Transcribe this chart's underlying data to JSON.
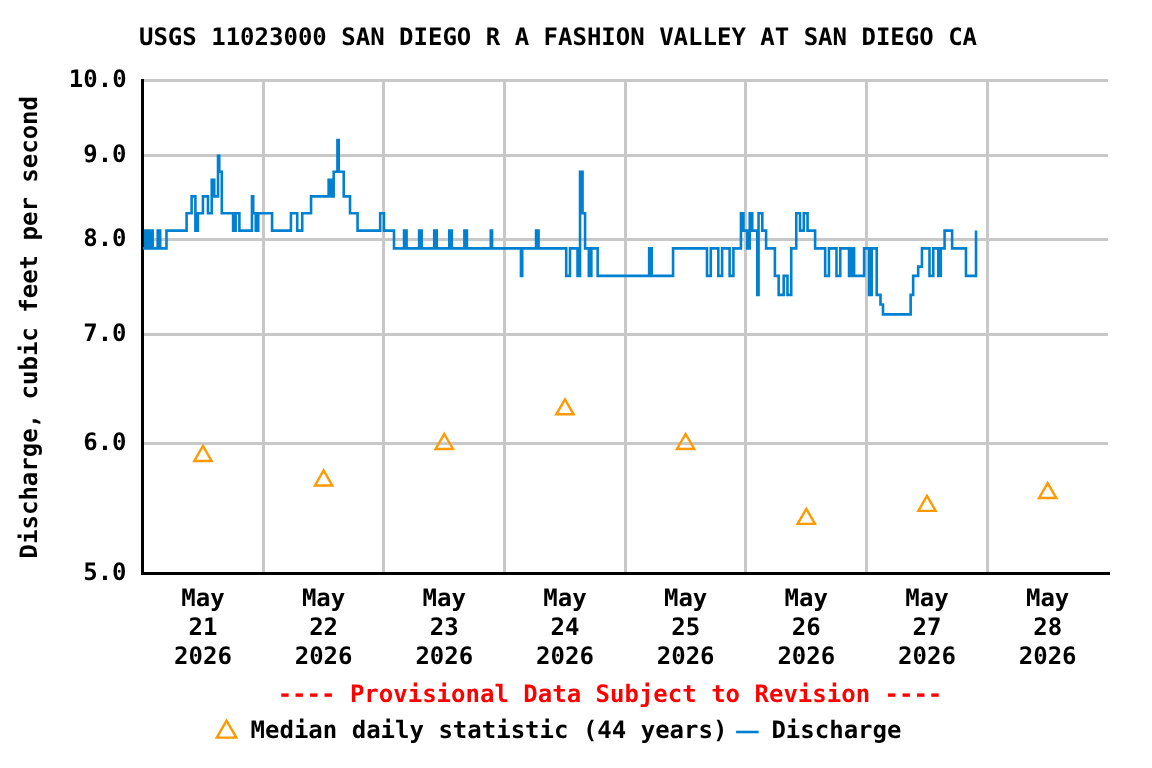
{
  "chart_data": {
    "type": "step",
    "title": "USGS 11023000 SAN DIEGO R A FASHION VALLEY AT SAN DIEGO CA",
    "ylabel": "Discharge, cubic feet per second",
    "log": true,
    "grid": true,
    "legend": "bottom",
    "annotations": [
      "---- Provisional Data Subject to Revision ----"
    ],
    "xlim": [
      "2026-05-21T00:00",
      "2026-05-29T00:00"
    ],
    "xticks": [
      {
        "value": "2026-05-21T12:00",
        "label": "May 21 2026"
      },
      {
        "value": "2026-05-22T00:00",
        "label": null
      },
      {
        "value": "2026-05-22T12:00",
        "label": "May 22 2026"
      },
      {
        "value": "2026-05-23T00:00",
        "label": null
      },
      {
        "value": "2026-05-23T12:00",
        "label": "May 23 2026"
      },
      {
        "value": "2026-05-24T00:00",
        "label": null
      },
      {
        "value": "2026-05-24T12:00",
        "label": "May 24 2026"
      },
      {
        "value": "2026-05-25T00:00",
        "label": null
      },
      {
        "value": "2026-05-25T12:00",
        "label": "May 25 2026"
      },
      {
        "value": "2026-05-26T00:00",
        "label": null
      },
      {
        "value": "2026-05-26T12:00",
        "label": "May 26 2026"
      },
      {
        "value": "2026-05-27T00:00",
        "label": null
      },
      {
        "value": "2026-05-27T12:00",
        "label": "May 27 2026"
      },
      {
        "value": "2026-05-28T00:00",
        "label": null
      },
      {
        "value": "2026-05-28T12:00",
        "label": "May 28 2026"
      }
    ],
    "ylim": [
      5,
      10
    ],
    "yticks": [
      {
        "value": 5,
        "label": "5.0"
      },
      {
        "value": 6,
        "label": "6.0"
      },
      {
        "value": 7,
        "label": "7.0"
      },
      {
        "value": 8,
        "label": "8.0"
      },
      {
        "value": 9,
        "label": "9.0"
      },
      {
        "value": 10,
        "label": "10.0"
      }
    ],
    "series": [
      {
        "name": "Median daily statistic (44 years)",
        "type": "scatter",
        "marker": "triangle",
        "color": "#ff9900",
        "x": [
          "2026-05-21T12:00",
          "2026-05-22T12:00",
          "2026-05-23T12:00",
          "2026-05-24T12:00",
          "2026-05-25T12:00",
          "2026-05-26T12:00",
          "2026-05-27T12:00",
          "2026-05-28T12:00"
        ],
        "values": [
          5.9,
          5.7,
          6.0,
          6.3,
          6.0,
          5.4,
          5.5,
          5.6
        ]
      },
      {
        "name": "Discharge",
        "marker": "none",
        "color": "#0080d0",
        "x": [
          "2026-05-21T00:00",
          "2026-05-21T00:30",
          "2026-05-21T01:00",
          "2026-05-21T01:30",
          "2026-05-21T02:00",
          "2026-05-21T03:00",
          "2026-05-21T03:30",
          "2026-05-21T04:45",
          "2026-05-21T08:45",
          "2026-05-21T09:45",
          "2026-05-21T10:30",
          "2026-05-21T11:00",
          "2026-05-21T12:00",
          "2026-05-21T13:00",
          "2026-05-21T13:45",
          "2026-05-21T14:15",
          "2026-05-21T15:00",
          "2026-05-21T15:15",
          "2026-05-21T15:45",
          "2026-05-21T18:00",
          "2026-05-21T18:30",
          "2026-05-21T19:15",
          "2026-05-21T21:45",
          "2026-05-21T22:00",
          "2026-05-21T22:30",
          "2026-05-21T23:00",
          "2026-05-22T01:45",
          "2026-05-22T05:30",
          "2026-05-22T06:45",
          "2026-05-22T07:45",
          "2026-05-22T09:30",
          "2026-05-22T13:00",
          "2026-05-22T13:30",
          "2026-05-22T14:00",
          "2026-05-22T14:45",
          "2026-05-22T15:00",
          "2026-05-22T16:00",
          "2026-05-22T17:15",
          "2026-05-22T18:45",
          "2026-05-22T23:15",
          "2026-05-23T00:00",
          "2026-05-23T02:00",
          "2026-05-23T04:00",
          "2026-05-23T04:30",
          "2026-05-23T07:00",
          "2026-05-23T07:30",
          "2026-05-23T10:00",
          "2026-05-23T10:30",
          "2026-05-23T13:00",
          "2026-05-23T13:30",
          "2026-05-23T16:00",
          "2026-05-23T16:30",
          "2026-05-23T21:15",
          "2026-05-23T21:30",
          "2026-05-24T03:15",
          "2026-05-24T03:30",
          "2026-05-24T06:15",
          "2026-05-24T06:45",
          "2026-05-24T12:15",
          "2026-05-24T13:00",
          "2026-05-24T14:30",
          "2026-05-24T15:00",
          "2026-05-24T15:30",
          "2026-05-24T16:00",
          "2026-05-24T16:45",
          "2026-05-24T17:15",
          "2026-05-24T18:30",
          "2026-05-25T04:45",
          "2026-05-25T05:15",
          "2026-05-25T09:30",
          "2026-05-25T16:15",
          "2026-05-25T17:00",
          "2026-05-25T18:30",
          "2026-05-25T19:15",
          "2026-05-25T20:45",
          "2026-05-25T21:30",
          "2026-05-25T23:00",
          "2026-05-25T23:30",
          "2026-05-26T00:15",
          "2026-05-26T00:45",
          "2026-05-26T01:15",
          "2026-05-26T02:15",
          "2026-05-26T02:30",
          "2026-05-26T03:15",
          "2026-05-26T04:00",
          "2026-05-26T05:45",
          "2026-05-26T06:30",
          "2026-05-26T07:30",
          "2026-05-26T08:15",
          "2026-05-26T09:00",
          "2026-05-26T10:00",
          "2026-05-26T10:45",
          "2026-05-26T11:30",
          "2026-05-26T12:15",
          "2026-05-26T13:45",
          "2026-05-26T15:45",
          "2026-05-26T16:30",
          "2026-05-26T18:00",
          "2026-05-26T18:45",
          "2026-05-26T20:30",
          "2026-05-26T21:00",
          "2026-05-26T21:30",
          "2026-05-26T23:30",
          "2026-05-27T00:30",
          "2026-05-27T01:00",
          "2026-05-27T02:00",
          "2026-05-27T02:45",
          "2026-05-27T03:15",
          "2026-05-27T08:45",
          "2026-05-27T09:15",
          "2026-05-27T10:15",
          "2026-05-27T11:00",
          "2026-05-27T12:30",
          "2026-05-27T13:15",
          "2026-05-27T14:15",
          "2026-05-27T14:45",
          "2026-05-27T15:30",
          "2026-05-27T17:00",
          "2026-05-27T19:45",
          "2026-05-27T21:45"
        ],
        "values": [
          7.9,
          8.1,
          7.9,
          8.1,
          7.9,
          8.1,
          7.9,
          8.1,
          8.3,
          8.5,
          8.1,
          8.3,
          8.5,
          8.3,
          8.7,
          8.5,
          9.0,
          8.8,
          8.3,
          8.1,
          8.3,
          8.1,
          8.5,
          8.3,
          8.1,
          8.3,
          8.1,
          8.3,
          8.1,
          8.3,
          8.5,
          8.7,
          8.5,
          8.8,
          9.2,
          8.8,
          8.5,
          8.3,
          8.1,
          8.3,
          8.1,
          7.9,
          8.1,
          7.9,
          8.1,
          7.9,
          8.1,
          7.9,
          8.1,
          7.9,
          8.1,
          7.9,
          8.1,
          7.9,
          7.6,
          7.9,
          8.1,
          7.9,
          7.6,
          7.9,
          7.6,
          8.8,
          8.3,
          7.9,
          7.6,
          7.9,
          7.6,
          7.9,
          7.6,
          7.9,
          7.6,
          7.9,
          7.6,
          7.9,
          7.6,
          7.9,
          8.3,
          8.1,
          7.9,
          8.3,
          8.1,
          7.4,
          8.3,
          8.1,
          7.9,
          7.6,
          7.4,
          7.6,
          7.4,
          7.9,
          8.3,
          8.1,
          8.3,
          8.1,
          7.9,
          7.6,
          7.9,
          7.6,
          7.9,
          7.6,
          7.9,
          7.6,
          7.9,
          7.4,
          7.9,
          7.4,
          7.3,
          7.2,
          7.4,
          7.6,
          7.7,
          7.9,
          7.6,
          7.9,
          7.6,
          7.9,
          8.1,
          7.9,
          7.6,
          8.1
        ]
      }
    ]
  }
}
